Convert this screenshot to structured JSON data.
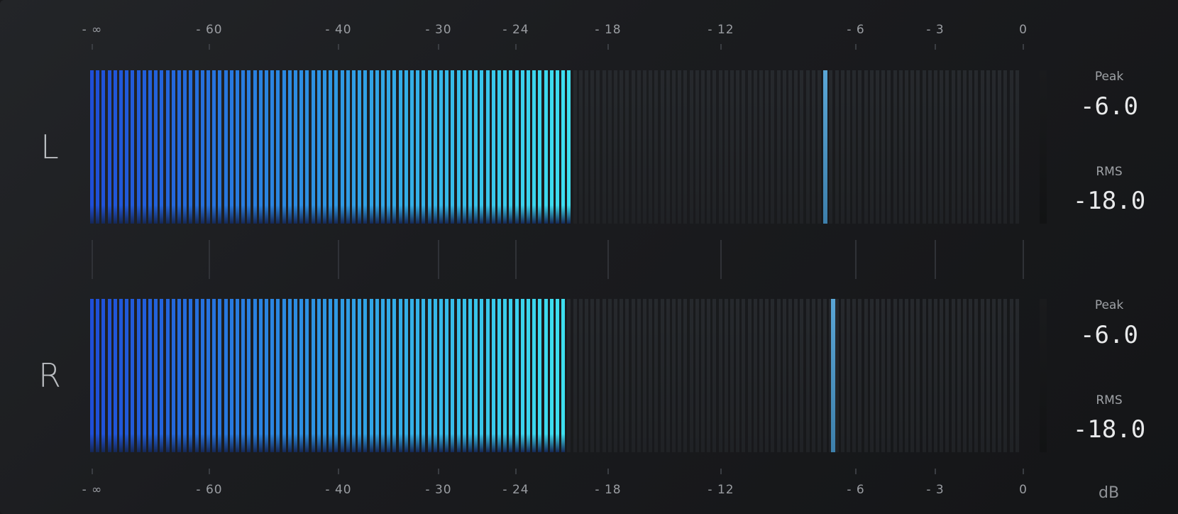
{
  "scale": {
    "labels": [
      "- ∞",
      "- 60",
      "- 40",
      "- 30",
      "- 24",
      "- 18",
      "- 12",
      "- 6",
      "- 3",
      "0"
    ],
    "unit": "dB"
  },
  "channels": [
    {
      "id": "L",
      "label": "L",
      "level_fraction": 0.515,
      "peak_hold_fraction": 0.785,
      "peak_label": "Peak",
      "peak_value": "-6.0",
      "rms_label": "RMS",
      "rms_value": "-18.0"
    },
    {
      "id": "R",
      "label": "R",
      "level_fraction": 0.507,
      "peak_hold_fraction": 0.793,
      "peak_label": "Peak",
      "peak_value": "-6.0",
      "rms_label": "RMS",
      "rms_value": "-18.0"
    }
  ],
  "colors": {
    "low": "#1f4fd8",
    "high": "#3ee0ef",
    "off": "#2c2f33",
    "peak_hold": "#5aa6d6"
  }
}
